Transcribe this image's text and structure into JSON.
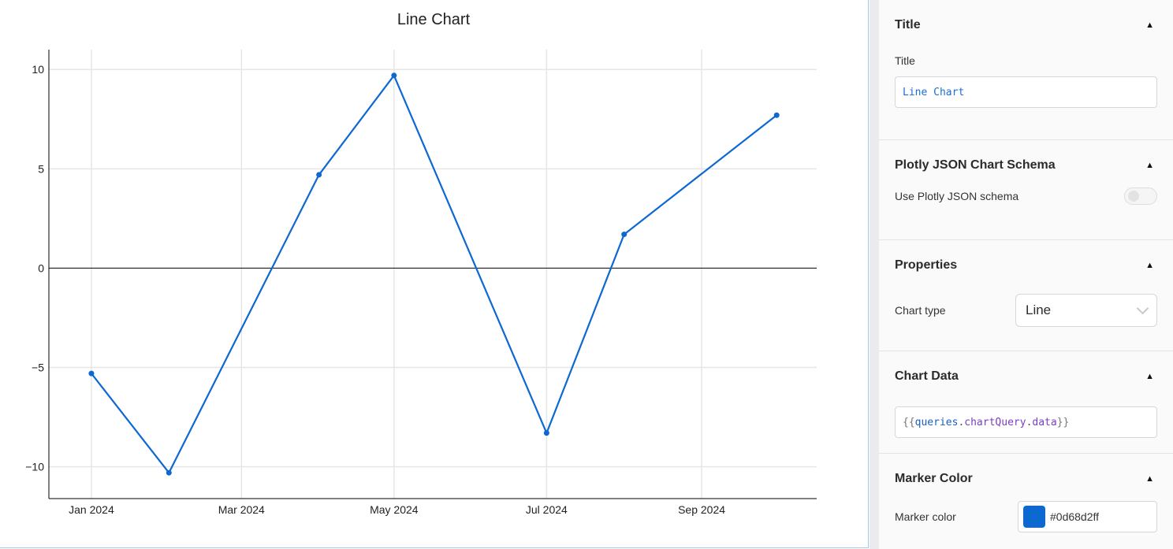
{
  "chart_data": {
    "type": "line",
    "title": "Line Chart",
    "x": [
      "2024-01-01",
      "2024-02-01",
      "2024-04-01",
      "2024-05-01",
      "2024-07-01",
      "2024-08-01",
      "2024-10-01"
    ],
    "series": [
      {
        "values": [
          -5.3,
          -10.3,
          4.7,
          9.7,
          -8.3,
          1.7,
          7.7
        ],
        "color": "#0d68d2"
      }
    ],
    "xticks": [
      {
        "date": "2024-01-01",
        "label": "Jan 2024"
      },
      {
        "date": "2024-03-01",
        "label": "Mar 2024"
      },
      {
        "date": "2024-05-01",
        "label": "May 2024"
      },
      {
        "date": "2024-07-01",
        "label": "Jul 2024"
      },
      {
        "date": "2024-09-01",
        "label": "Sep 2024"
      }
    ],
    "yticks": [
      {
        "value": -10,
        "label": "−10"
      },
      {
        "value": -5,
        "label": "−5"
      },
      {
        "value": 0,
        "label": "0"
      },
      {
        "value": 5,
        "label": "5"
      },
      {
        "value": 10,
        "label": "10"
      }
    ],
    "xlim": [
      "2023-12-15",
      "2024-10-17"
    ],
    "ylim": [
      -11.6,
      11
    ],
    "grid": true,
    "mode": "lines+markers"
  },
  "panel": {
    "title_section": {
      "heading": "Title",
      "field_label": "Title",
      "value": "Line Chart"
    },
    "schema_section": {
      "heading": "Plotly JSON Chart Schema",
      "toggle_label": "Use Plotly JSON schema",
      "toggle_on": false
    },
    "properties_section": {
      "heading": "Properties",
      "chart_type_label": "Chart type",
      "chart_type_value": "Line"
    },
    "data_section": {
      "heading": "Chart Data",
      "open": "{{",
      "expr1": "queries",
      "dot1": ".",
      "expr2": "chartQuery",
      "dot2": ".",
      "expr3": "data",
      "close": "}}"
    },
    "marker_section": {
      "heading": "Marker Color",
      "field_label": "Marker color",
      "value": "#0d68d2ff",
      "swatch_color": "#0d68d2"
    }
  }
}
